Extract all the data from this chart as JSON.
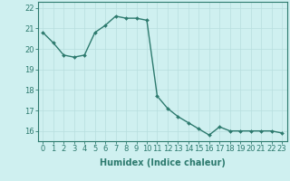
{
  "x": [
    0,
    1,
    2,
    3,
    4,
    5,
    6,
    7,
    8,
    9,
    10,
    11,
    12,
    13,
    14,
    15,
    16,
    17,
    18,
    19,
    20,
    21,
    22,
    23
  ],
  "y": [
    20.8,
    20.3,
    19.7,
    19.6,
    19.7,
    20.8,
    21.15,
    21.6,
    21.5,
    21.5,
    21.4,
    17.7,
    17.1,
    16.7,
    16.4,
    16.1,
    15.8,
    16.2,
    16.0,
    16.0,
    16.0,
    16.0,
    16.0,
    15.9
  ],
  "line_color": "#2d7a6e",
  "marker": "D",
  "markersize": 2.0,
  "linewidth": 1.0,
  "bg_color": "#cff0f0",
  "grid_color": "#b8dede",
  "ylabel_ticks": [
    16,
    17,
    18,
    19,
    20,
    21,
    22
  ],
  "xlabel": "Humidex (Indice chaleur)",
  "xlabel_fontsize": 7,
  "tick_fontsize": 6,
  "ylim": [
    15.5,
    22.3
  ],
  "xlim": [
    -0.5,
    23.5
  ],
  "title": ""
}
